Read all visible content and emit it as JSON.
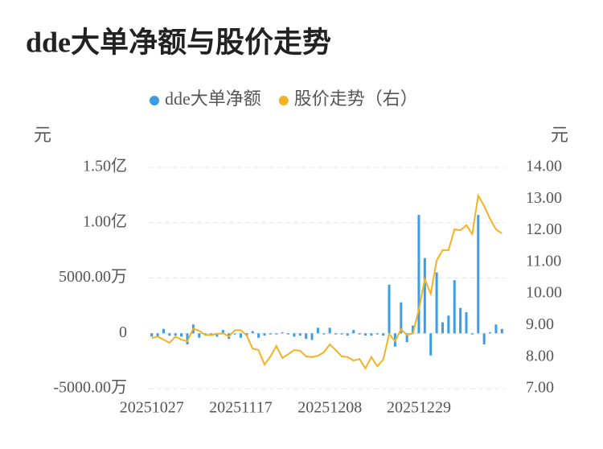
{
  "chart_data": {
    "type": "bar",
    "title": "dde大单净额与股价走势",
    "y_label": "元",
    "y2_label": "元",
    "categories": [
      "20251027",
      null,
      null,
      null,
      null,
      null,
      null,
      null,
      null,
      null,
      null,
      null,
      null,
      null,
      null,
      "20251117",
      null,
      null,
      null,
      null,
      null,
      null,
      null,
      null,
      null,
      null,
      null,
      null,
      null,
      null,
      "20251208",
      null,
      null,
      null,
      null,
      null,
      null,
      null,
      null,
      null,
      null,
      null,
      null,
      null,
      null,
      "20251229",
      null,
      null,
      null,
      null,
      null,
      null,
      null,
      null,
      null,
      null,
      null,
      null,
      null,
      null
    ],
    "series": [
      {
        "name": "dde大单净额",
        "type": "bar",
        "color": "#3a9de6",
        "values": [
          -300,
          -300,
          400,
          -200,
          -200,
          -300,
          -1000,
          800,
          -400,
          -100,
          -100,
          -300,
          300,
          -500,
          -100,
          -400,
          -200,
          200,
          -400,
          -200,
          -100,
          -100,
          100,
          -100,
          -300,
          -200,
          -500,
          -600,
          500,
          -100,
          500,
          -100,
          -100,
          -200,
          300,
          -100,
          -200,
          -200,
          -100,
          -200,
          4400,
          -1200,
          2800,
          -800,
          700,
          10700,
          6800,
          -2000,
          5500,
          1000,
          1600,
          4800,
          2300,
          1900,
          -100,
          10700,
          -1000,
          100,
          800,
          400
        ]
      },
      {
        "name": "股价走势（右）",
        "type": "line",
        "axis": "y2",
        "color": "#f4b223",
        "values": [
          8.6,
          8.65,
          8.55,
          8.45,
          8.65,
          8.55,
          8.5,
          8.9,
          8.83,
          8.7,
          8.7,
          8.73,
          8.75,
          8.65,
          8.85,
          8.85,
          8.68,
          8.27,
          8.22,
          7.76,
          8.02,
          8.35,
          7.97,
          8.09,
          8.22,
          8.2,
          8.02,
          8.0,
          8.04,
          8.15,
          8.4,
          8.22,
          8.02,
          8.0,
          7.89,
          7.94,
          7.64,
          8.0,
          7.71,
          7.92,
          8.73,
          8.5,
          8.88,
          8.7,
          8.75,
          9.5,
          10.46,
          10.0,
          11.05,
          11.38,
          11.38,
          12.04,
          12.01,
          12.17,
          11.89,
          13.11,
          12.78,
          12.37,
          12.04,
          11.91
        ]
      }
    ],
    "ylim": [
      -5000,
      15000
    ],
    "yticks": [
      {
        "value": -5000,
        "label": "-5000.00万"
      },
      0,
      {
        "value": 5000,
        "label": "5000.00万"
      },
      {
        "value": 10000,
        "label": "1.00亿"
      },
      {
        "value": 15000,
        "label": "1.50亿"
      }
    ],
    "y2lim": [
      7,
      14
    ],
    "y2ticks": [
      {
        "value": 7,
        "label": "7.00"
      },
      {
        "value": 8,
        "label": "8.00"
      },
      {
        "value": 9,
        "label": "9.00"
      },
      {
        "value": 10,
        "label": "10.00"
      },
      {
        "value": 11,
        "label": "11.00"
      },
      {
        "value": 12,
        "label": "12.00"
      },
      {
        "value": 13,
        "label": "13.00"
      },
      {
        "value": 14,
        "label": "14.00"
      }
    ],
    "grid": true,
    "legend": "top"
  }
}
